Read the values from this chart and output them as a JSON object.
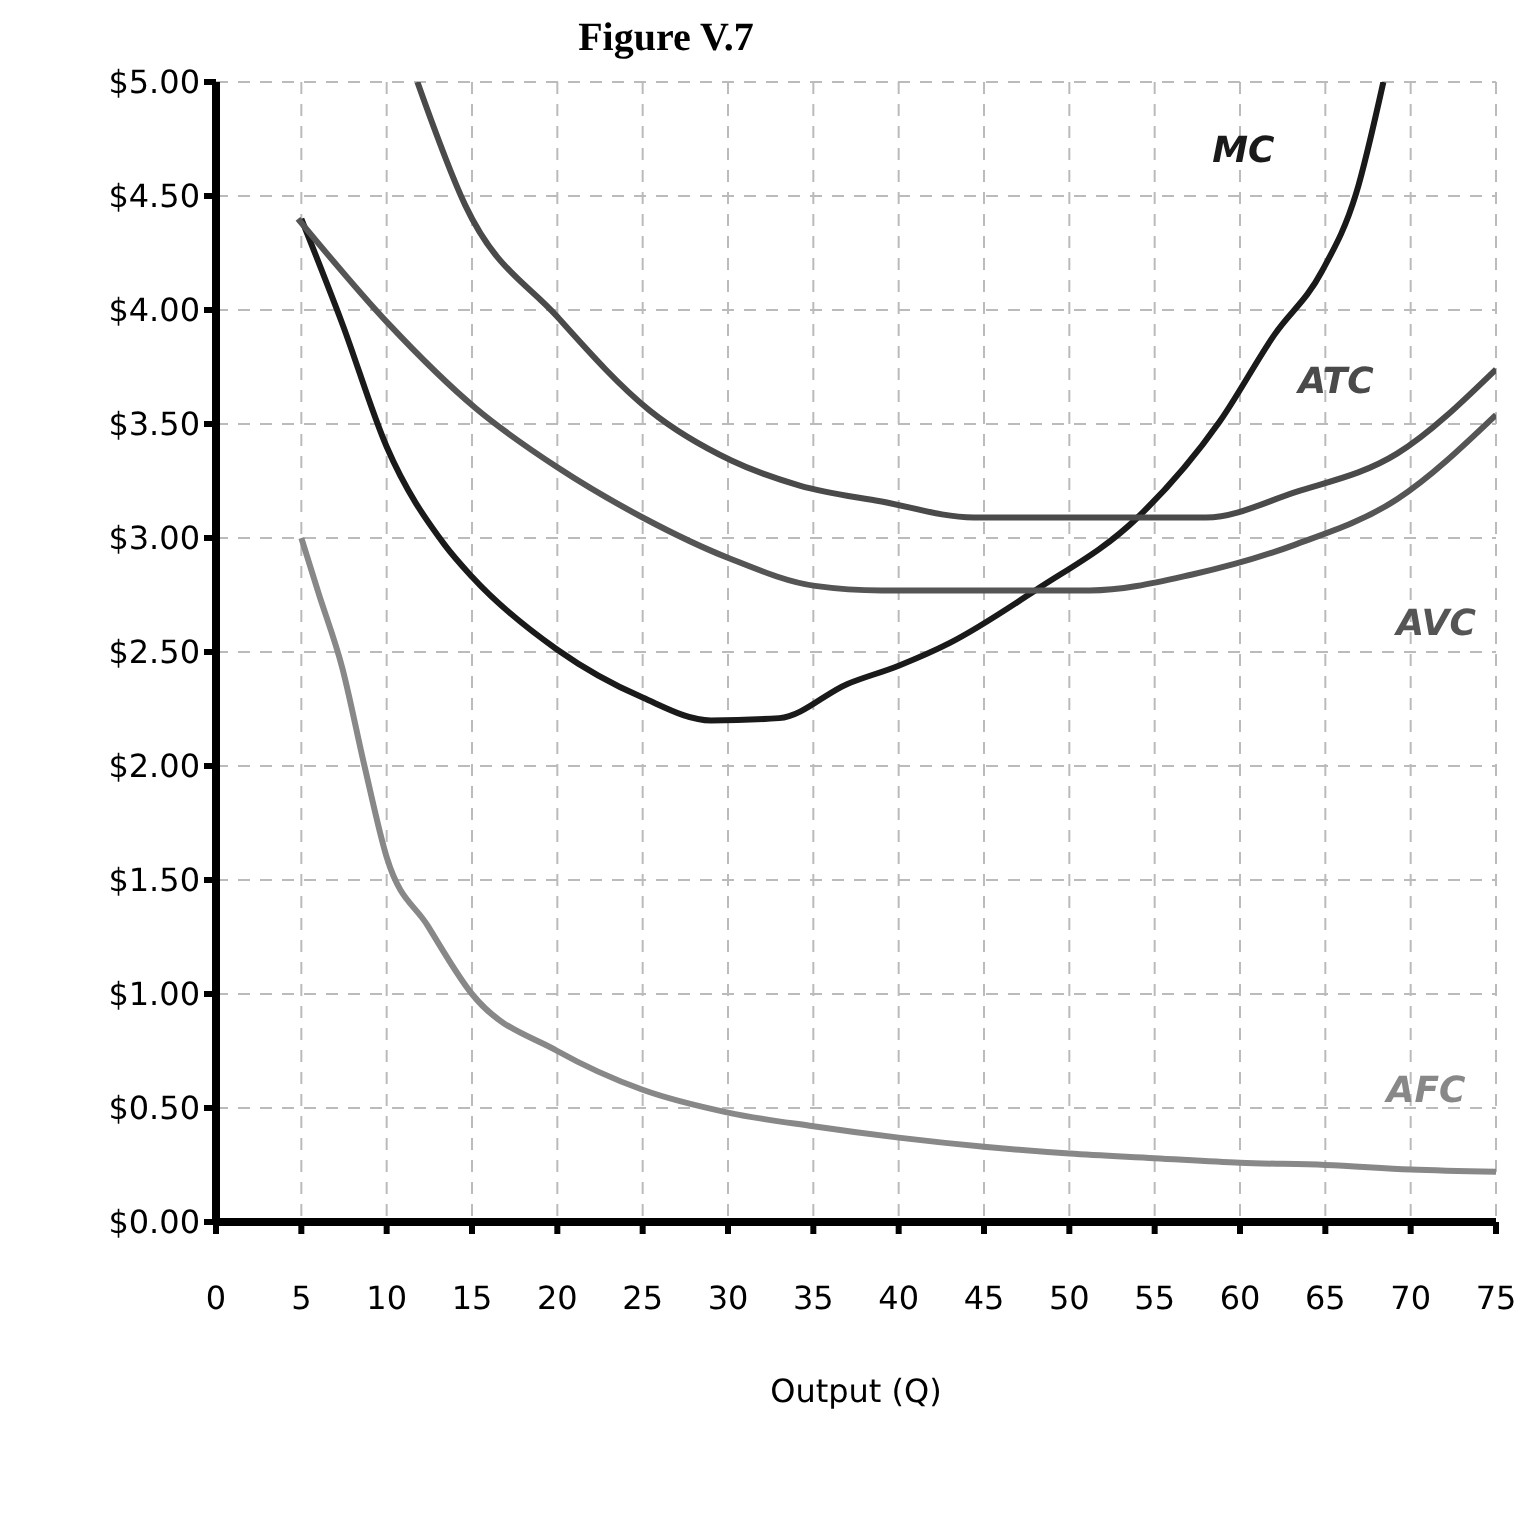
{
  "chart_data": {
    "type": "line",
    "title": "Figure V.7",
    "xlabel": "Output (Q)",
    "xlim": [
      0,
      75
    ],
    "xticks": [
      0,
      5,
      10,
      15,
      20,
      25,
      30,
      35,
      40,
      45,
      50,
      55,
      60,
      65,
      70,
      75
    ],
    "ylim": [
      0,
      5
    ],
    "yticks": [
      {
        "value": 0,
        "label": "$0.00"
      },
      {
        "value": 0.5,
        "label": "$0.50"
      },
      {
        "value": 1,
        "label": "$1.00"
      },
      {
        "value": 1.5,
        "label": "$1.50"
      },
      {
        "value": 2,
        "label": "$2.00"
      },
      {
        "value": 2.5,
        "label": "$2.50"
      },
      {
        "value": 3,
        "label": "$3.00"
      },
      {
        "value": 3.5,
        "label": "$3.50"
      },
      {
        "value": 4,
        "label": "$4.00"
      },
      {
        "value": 4.5,
        "label": "$4.50"
      },
      {
        "value": 5,
        "label": "$5.00"
      }
    ],
    "grid": true,
    "marker": "none",
    "line_style": "solid",
    "series": [
      {
        "name": "MC",
        "color": "#1a1a1a",
        "x": [
          5,
          7.4,
          10,
          13.4,
          15,
          20,
          25,
          29,
          33,
          37,
          40,
          43,
          48,
          54,
          58.8,
          62,
          64.8,
          66.8,
          68.4
        ],
        "values": [
          4.4,
          3.94,
          3.4,
          2.97,
          2.83,
          2.51,
          2.3,
          2.2,
          2.21,
          2.36,
          2.44,
          2.54,
          2.77,
          3.09,
          3.51,
          3.89,
          4.17,
          4.51,
          5.0
        ]
      },
      {
        "name": "ATC",
        "color": "#4a4a4a",
        "x": [
          11.8,
          14.6,
          20,
          25.4,
          30.2,
          34.2,
          39,
          44.4,
          54,
          58,
          63.2,
          69.2,
          75
        ],
        "values": [
          5.0,
          4.46,
          3.97,
          3.56,
          3.34,
          3.23,
          3.16,
          3.09,
          3.09,
          3.09,
          3.2,
          3.37,
          3.74
        ]
      },
      {
        "name": "AVC",
        "color": "#555555",
        "x": [
          4.8,
          10.1,
          15.2,
          20,
          25,
          30.1,
          35.1,
          39,
          51.2,
          57.2,
          63.2,
          69.2,
          75
        ],
        "values": [
          4.4,
          3.94,
          3.57,
          3.31,
          3.09,
          2.91,
          2.79,
          2.77,
          2.77,
          2.84,
          2.97,
          3.17,
          3.54
        ]
      },
      {
        "name": "AFC",
        "color": "#888888",
        "x": [
          5,
          6,
          7.4,
          8.7,
          10,
          12.4,
          15,
          20,
          25,
          30,
          35,
          40,
          45,
          50,
          55,
          60,
          65,
          70,
          75
        ],
        "values": [
          3.0,
          2.76,
          2.43,
          2.0,
          1.6,
          1.3,
          1.0,
          0.75,
          0.58,
          0.48,
          0.42,
          0.37,
          0.33,
          0.3,
          0.28,
          0.26,
          0.25,
          0.23,
          0.22
        ]
      }
    ]
  }
}
